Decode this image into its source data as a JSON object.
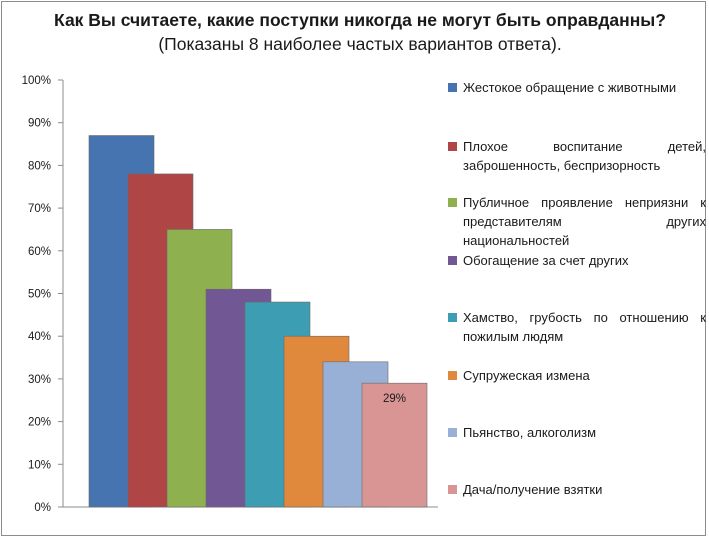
{
  "title": {
    "bold": "Как Вы считаете, какие поступки никогда не могут быть оправданны?",
    "normal": " (Показаны 8 наиболее частых вариантов ответа)."
  },
  "chart_data": {
    "type": "bar",
    "title": "Как Вы считаете, какие поступки никогда не могут быть оправданны? (Показаны 8 наиболее частых вариантов ответа).",
    "ylim": [
      0,
      100
    ],
    "y_ticks": [
      "0%",
      "10%",
      "20%",
      "30%",
      "40%",
      "50%",
      "60%",
      "70%",
      "80%",
      "90%",
      "100%"
    ],
    "grid": false,
    "legend_position": "right",
    "series": [
      {
        "name": "Жестокое обращение с животными",
        "value": 87,
        "color": "#4674b0",
        "label": ""
      },
      {
        "name": "Плохое воспитание детей, заброшенность, беспризорность",
        "value": 78,
        "color": "#b04546",
        "label": ""
      },
      {
        "name": "Публичное проявление неприязни к представителям других национальностей",
        "value": 65,
        "color": "#8fb04f",
        "label": ""
      },
      {
        "name": "Обогащение за счет других",
        "value": 51,
        "color": "#725795",
        "label": ""
      },
      {
        "name": "Хамство, грубость по отношению к пожилым людям",
        "value": 48,
        "color": "#3d9db3",
        "label": ""
      },
      {
        "name": "Супружеская измена",
        "value": 40,
        "color": "#e0883c",
        "label": ""
      },
      {
        "name": "Пьянство, алкоголизм",
        "value": 34,
        "color": "#98b0d6",
        "label": ""
      },
      {
        "name": "Дача/получение взятки",
        "value": 29,
        "color": "#d99594",
        "label": "29%"
      }
    ]
  }
}
